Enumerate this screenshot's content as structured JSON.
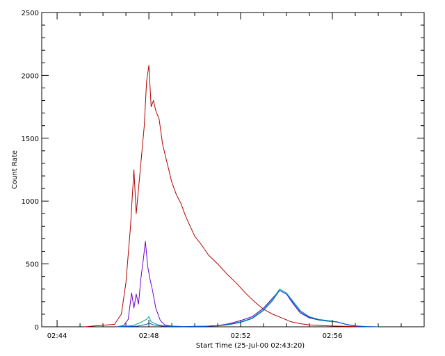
{
  "chart_data": {
    "type": "line",
    "title": "",
    "xlabel": "Start Time (25-Jul-00 02:43:20)",
    "ylabel": "Count Rate",
    "x_unit": "minutes",
    "xlim": [
      163.33,
      180.0
    ],
    "ylim": [
      0,
      2500
    ],
    "x_ticks": [
      {
        "value": 164,
        "label": "02:44"
      },
      {
        "value": 168,
        "label": "02:48"
      },
      {
        "value": 172,
        "label": "02:52"
      },
      {
        "value": 176,
        "label": "02:56"
      }
    ],
    "y_ticks": [
      0,
      500,
      1000,
      1500,
      2000,
      2500
    ],
    "grid": false,
    "series": [
      {
        "color": "#b00000",
        "x": [
          165.2,
          166.5,
          166.8,
          167.0,
          167.2,
          167.35,
          167.45,
          167.6,
          167.7,
          167.8,
          167.9,
          168.0,
          168.1,
          168.2,
          168.3,
          168.45,
          168.6,
          168.8,
          169.0,
          169.2,
          169.4,
          169.6,
          169.8,
          170.0,
          170.3,
          170.6,
          171.0,
          171.4,
          171.8,
          172.2,
          172.6,
          173.0,
          173.4,
          173.8,
          174.2,
          174.6,
          175.0,
          175.5,
          176.0,
          176.5,
          177.0,
          177.5,
          178.0
        ],
        "y": [
          0,
          20,
          100,
          350,
          800,
          1250,
          900,
          1200,
          1400,
          1600,
          1950,
          2080,
          1750,
          1800,
          1720,
          1650,
          1450,
          1300,
          1150,
          1050,
          980,
          880,
          800,
          720,
          650,
          570,
          500,
          420,
          350,
          270,
          200,
          140,
          100,
          70,
          40,
          25,
          15,
          10,
          6,
          4,
          2,
          1,
          0
        ]
      },
      {
        "color": "#7000c8",
        "x": [
          166.6,
          166.9,
          167.1,
          167.25,
          167.35,
          167.45,
          167.55,
          167.65,
          167.75,
          167.85,
          167.95,
          168.05,
          168.15,
          168.3,
          168.5,
          168.7,
          169.0,
          169.5,
          170.5,
          171.0,
          171.5,
          172.0,
          172.5,
          173.0,
          173.4,
          173.7,
          174.0,
          174.3,
          174.6,
          175.0,
          175.4,
          175.8,
          176.2,
          176.6,
          177.0,
          177.5
        ],
        "y": [
          0,
          10,
          60,
          270,
          150,
          260,
          180,
          380,
          520,
          680,
          480,
          380,
          300,
          150,
          50,
          15,
          5,
          2,
          5,
          10,
          25,
          50,
          80,
          150,
          230,
          290,
          260,
          180,
          110,
          70,
          55,
          45,
          40,
          20,
          5,
          0
        ]
      },
      {
        "color": "#00a0a0",
        "x": [
          166.6,
          167.3,
          167.6,
          167.9,
          168.0,
          168.1,
          168.4,
          168.8,
          169.5,
          170.5,
          171.0,
          171.5,
          172.0,
          172.5,
          173.0,
          173.4,
          173.7,
          174.0,
          174.3,
          174.6,
          175.0,
          175.4,
          175.8,
          176.2,
          176.6,
          177.0,
          177.5,
          178.0
        ],
        "y": [
          0,
          10,
          30,
          60,
          80,
          40,
          15,
          5,
          2,
          5,
          10,
          20,
          40,
          70,
          140,
          220,
          300,
          270,
          200,
          130,
          80,
          60,
          50,
          40,
          20,
          8,
          2,
          0
        ]
      },
      {
        "color": "#0050d0",
        "x": [
          166.6,
          167.5,
          167.9,
          168.0,
          168.2,
          168.6,
          169.5,
          170.5,
          171.0,
          171.5,
          172.0,
          172.5,
          173.0,
          173.4,
          173.7,
          174.0,
          174.3,
          174.6,
          175.0,
          175.4,
          175.8,
          176.2,
          176.6,
          177.0,
          177.5,
          178.0
        ],
        "y": [
          0,
          5,
          20,
          30,
          15,
          5,
          2,
          4,
          8,
          18,
          35,
          65,
          130,
          210,
          290,
          260,
          190,
          120,
          75,
          55,
          45,
          38,
          18,
          6,
          1,
          0
        ]
      }
    ]
  }
}
